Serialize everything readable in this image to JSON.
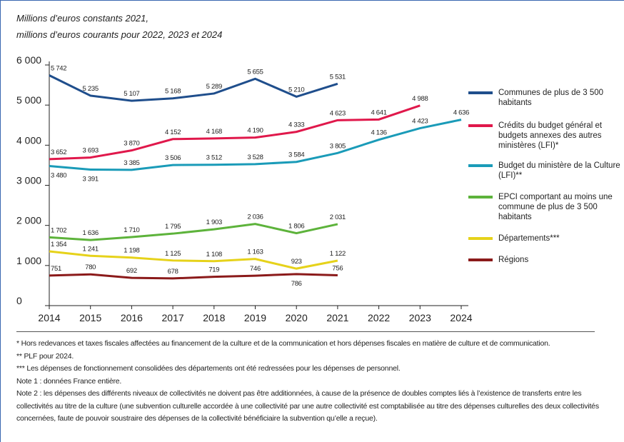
{
  "chart_data": {
    "type": "line",
    "subtitle": [
      "Millions d’euros constants 2021,",
      "millions d’euros courants pour 2022, 2023 et 2024"
    ],
    "x": [
      2014,
      2015,
      2016,
      2017,
      2018,
      2019,
      2020,
      2021,
      2022,
      2023,
      2024
    ],
    "xlim": [
      2014,
      2024
    ],
    "ylim": [
      0,
      6000
    ],
    "yticks": [
      0,
      {
        "value": 1000,
        "label": "1 000"
      },
      {
        "value": 2000,
        "label": "2 000"
      },
      {
        "value": 3000,
        "label": "3 000"
      },
      {
        "value": 4000,
        "label": "4 000"
      },
      {
        "value": 5000,
        "label": "5 000"
      },
      {
        "value": 6000,
        "label": "6 000"
      }
    ],
    "series": [
      {
        "name": "Communes de plus de 3 500 habitants",
        "color": "#1f4e8c",
        "values": [
          5742,
          5235,
          5107,
          5168,
          5289,
          5655,
          5210,
          5531,
          null,
          null,
          null
        ],
        "value_labels": [
          "5 742",
          "5 235",
          "5 107",
          "5 168",
          "5 289",
          "5 655",
          "5 210",
          "5 531",
          null,
          null,
          null
        ]
      },
      {
        "name": "Crédits du budget général et budgets annexes des autres ministères (LFI)*",
        "color": "#e0184b",
        "values": [
          3652,
          3693,
          3870,
          4152,
          4168,
          4190,
          4333,
          4623,
          4641,
          4988,
          null
        ],
        "value_labels": [
          "3 652",
          "3 693",
          "3 870",
          "4 152",
          "4 168",
          "4 190",
          "4 333",
          "4 623",
          "4 641",
          "4 988",
          null
        ]
      },
      {
        "name": "Budget du ministère de la Culture (LFI)**",
        "color": "#1a9bb8",
        "values": [
          3480,
          3391,
          3385,
          3506,
          3512,
          3528,
          3584,
          3805,
          4136,
          4423,
          4636
        ],
        "value_labels": [
          "3 480",
          "3 391",
          "3 385",
          "3 506",
          "3 512",
          "3 528",
          "3 584",
          "3 805",
          "4 136",
          "4 423",
          "4 636"
        ]
      },
      {
        "name": "EPCI comportant au moins une commune de plus de 3 500 habitants",
        "color": "#5db33b",
        "values": [
          1702,
          1636,
          1710,
          1795,
          1903,
          2036,
          1806,
          2031,
          null,
          null,
          null
        ],
        "value_labels": [
          "1 702",
          "1 636",
          "1 710",
          "1 795",
          "1 903",
          "2 036",
          "1 806",
          "2 031",
          null,
          null,
          null
        ]
      },
      {
        "name": "Départements***",
        "color": "#e6d21a",
        "values": [
          1354,
          1241,
          1198,
          1125,
          1108,
          1163,
          923,
          1122,
          null,
          null,
          null
        ],
        "value_labels": [
          "1 354",
          "1 241",
          "1 198",
          "1 125",
          "1 108",
          "1 163",
          "923",
          "1 122",
          null,
          null,
          null
        ]
      },
      {
        "name": "Régions",
        "color": "#8b1a1a",
        "values": [
          751,
          780,
          692,
          678,
          719,
          746,
          786,
          756,
          null,
          null,
          null
        ]
      }
    ],
    "notes": [
      "* Hors redevances et taxes fiscales affectées au financement de la culture et de la communication et hors dépenses fiscales en matière de culture et de communication.",
      "** PLF pour 2024.",
      "*** Les dépenses de fonctionnement consolidées des départements ont été redressées pour les dépenses de personnel.",
      "Note 1 : données France entière.",
      "Note 2 : les dépenses des différents niveaux de collectivités ne doivent pas être additionnées, à cause de la présence de doubles comptes liés à l’existence de transferts entre les collectivités au titre de la culture (une subvention culturelle accordée à une collectivité par une autre collectivité est comptabilisée au titre des dépenses culturelles des deux collectivités concernées, faute de pouvoir soustraire des dépenses de la collectivité bénéficiaire la subvention qu’elle a reçue)."
    ]
  }
}
